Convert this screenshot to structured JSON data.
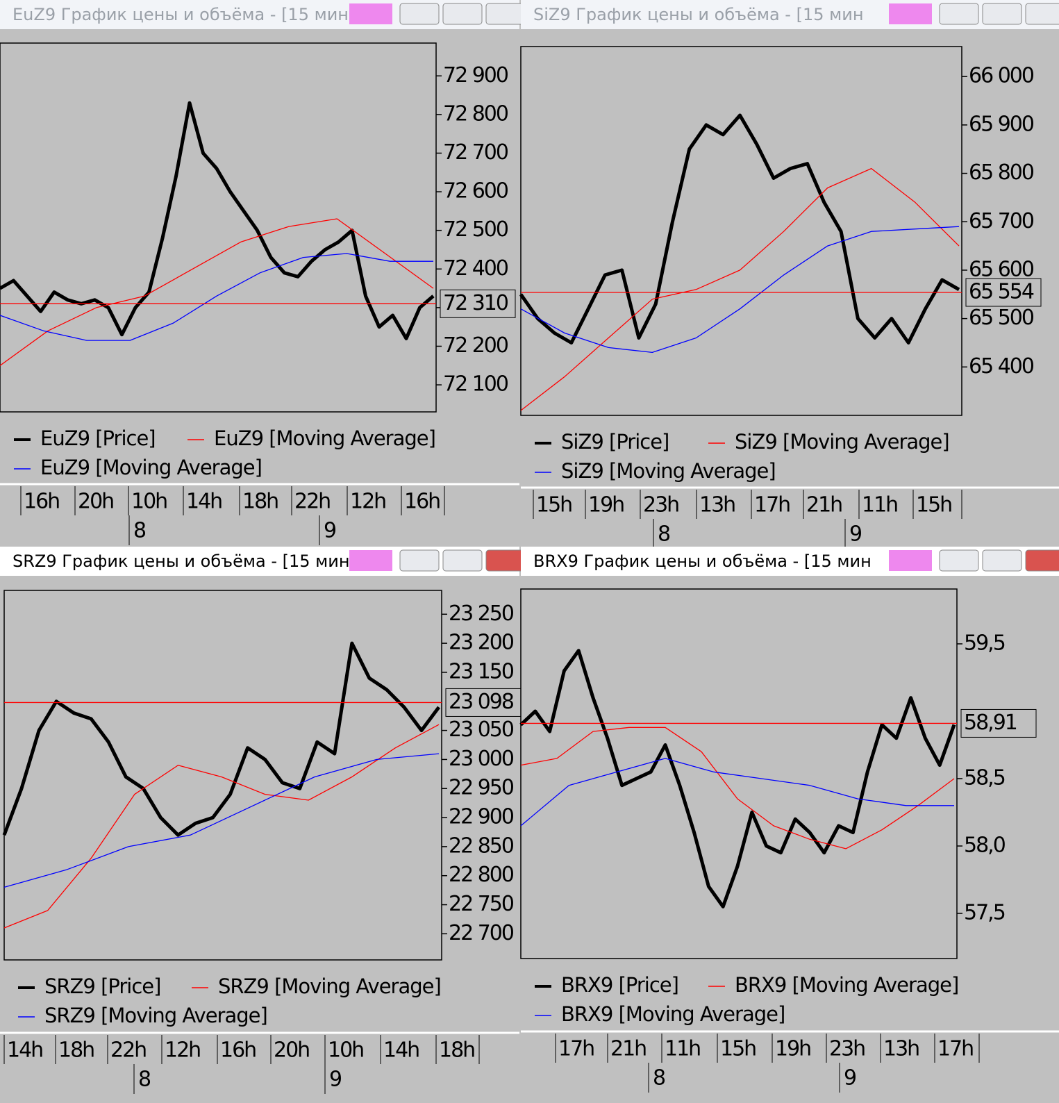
{
  "chart_data": [
    {
      "type": "line",
      "window_title": "EuZ9 График цены и объёма - [15 мин",
      "ylim": [
        72030,
        72985
      ],
      "yticks": [
        {
          "value": 72100,
          "label": "72 100"
        },
        {
          "value": 72200,
          "label": "72 200"
        },
        {
          "value": 72300,
          "label": "72 300"
        },
        {
          "value": 72400,
          "label": "72 400"
        },
        {
          "value": 72500,
          "label": "72 500"
        },
        {
          "value": 72600,
          "label": "72 600"
        },
        {
          "value": 72700,
          "label": "72 700"
        },
        {
          "value": 72800,
          "label": "72 800"
        },
        {
          "value": 72900,
          "label": "72 900"
        }
      ],
      "last": {
        "value": 72310,
        "label": "72 310"
      },
      "series": [
        {
          "name": "EuZ9 [Price]",
          "color": "#000000",
          "values": [
            72350,
            72370,
            72330,
            72290,
            72340,
            72320,
            72310,
            72320,
            72300,
            72230,
            72300,
            72340,
            72480,
            72640,
            72830,
            72700,
            72660,
            72600,
            72550,
            72500,
            72430,
            72390,
            72380,
            72420,
            72450,
            72470,
            72500,
            72330,
            72250,
            72280,
            72220,
            72300,
            72330
          ]
        },
        {
          "name": "EuZ9 [Moving Average]",
          "color": "#ff0000",
          "values": [
            72150,
            72240,
            72300,
            72330,
            72400,
            72470,
            72510,
            72530,
            72440,
            72350
          ]
        },
        {
          "name": "EuZ9 [Moving Average]",
          "color": "#0000ff",
          "values": [
            72280,
            72240,
            72215,
            72215,
            72260,
            72330,
            72390,
            72430,
            72440,
            72420,
            72420
          ]
        }
      ],
      "time_labels": [
        "16h",
        "20h",
        "10h",
        "14h",
        "18h",
        "22h",
        "12h",
        "16h"
      ],
      "days": [
        "8",
        "9"
      ]
    },
    {
      "type": "line",
      "window_title": "SiZ9 График цены и объёма - [15 мин",
      "ylim": [
        65300,
        66062
      ],
      "yticks": [
        {
          "value": 65400,
          "label": "65 400"
        },
        {
          "value": 65500,
          "label": "65 500"
        },
        {
          "value": 65600,
          "label": "65 600"
        },
        {
          "value": 65700,
          "label": "65 700"
        },
        {
          "value": 65800,
          "label": "65 800"
        },
        {
          "value": 65900,
          "label": "65 900"
        },
        {
          "value": 66000,
          "label": "66 000"
        }
      ],
      "last": {
        "value": 65554,
        "label": "65 554"
      },
      "series": [
        {
          "name": "SiZ9 [Price]",
          "color": "#000000",
          "values": [
            65550,
            65500,
            65470,
            65450,
            65520,
            65590,
            65600,
            65460,
            65530,
            65700,
            65850,
            65900,
            65880,
            65920,
            65860,
            65790,
            65810,
            65820,
            65740,
            65680,
            65500,
            65460,
            65500,
            65450,
            65520,
            65580,
            65560
          ]
        },
        {
          "name": "SiZ9 [Moving Average]",
          "color": "#ff0000",
          "values": [
            65310,
            65380,
            65460,
            65540,
            65560,
            65600,
            65680,
            65770,
            65810,
            65740,
            65650
          ]
        },
        {
          "name": "SiZ9 [Moving Average]",
          "color": "#0000ff",
          "values": [
            65520,
            65470,
            65440,
            65430,
            65460,
            65520,
            65590,
            65650,
            65680,
            65685,
            65690
          ]
        }
      ],
      "time_labels": [
        "15h",
        "19h",
        "23h",
        "13h",
        "17h",
        "21h",
        "11h",
        "15h"
      ],
      "days": [
        "8",
        "9"
      ]
    },
    {
      "type": "line",
      "window_title": "SRZ9 График цены и объёма - [15 мин",
      "ylim": [
        22655,
        23291
      ],
      "yticks": [
        {
          "value": 22700,
          "label": "22 700"
        },
        {
          "value": 22750,
          "label": "22 750"
        },
        {
          "value": 22800,
          "label": "22 800"
        },
        {
          "value": 22850,
          "label": "22 850"
        },
        {
          "value": 22900,
          "label": "22 900"
        },
        {
          "value": 22950,
          "label": "22 950"
        },
        {
          "value": 23000,
          "label": "23 000"
        },
        {
          "value": 23050,
          "label": "23 050"
        },
        {
          "value": 23150,
          "label": "23 150"
        },
        {
          "value": 23200,
          "label": "23 200"
        },
        {
          "value": 23250,
          "label": "23 250"
        }
      ],
      "last": {
        "value": 23098,
        "label": "23 098"
      },
      "series": [
        {
          "name": "SRZ9 [Price]",
          "color": "#000000",
          "values": [
            22870,
            22950,
            23050,
            23100,
            23080,
            23070,
            23030,
            22970,
            22950,
            22900,
            22870,
            22890,
            22900,
            22940,
            23020,
            23000,
            22960,
            22950,
            23030,
            23010,
            23200,
            23140,
            23120,
            23090,
            23050,
            23090
          ]
        },
        {
          "name": "SRZ9 [Moving Average]",
          "color": "#ff0000",
          "values": [
            22710,
            22740,
            22830,
            22940,
            22990,
            22970,
            22940,
            22930,
            22970,
            23020,
            23060
          ]
        },
        {
          "name": "SRZ9 [Moving Average]",
          "color": "#0000ff",
          "values": [
            22780,
            22810,
            22850,
            22870,
            22920,
            22970,
            23000,
            23010
          ]
        }
      ],
      "time_labels": [
        "14h",
        "18h",
        "22h",
        "12h",
        "16h",
        "20h",
        "10h",
        "14h",
        "18h"
      ],
      "days": [
        "8",
        "9"
      ]
    },
    {
      "type": "line",
      "window_title": "BRX9 График цены и объёма - [15 мин",
      "ylim": [
        57.165,
        59.907
      ],
      "yticks": [
        {
          "value": 57.5,
          "label": "57,5"
        },
        {
          "value": 58,
          "label": "58,0"
        },
        {
          "value": 58.5,
          "label": "58,5"
        },
        {
          "value": 59.5,
          "label": "59,5"
        }
      ],
      "last": {
        "value": 58.91,
        "label": "58,91"
      },
      "series": [
        {
          "name": "BRX9 [Price]",
          "color": "#000000",
          "values": [
            58.9,
            59.0,
            58.85,
            59.3,
            59.45,
            59.1,
            58.8,
            58.45,
            58.5,
            58.55,
            58.75,
            58.45,
            58.1,
            57.7,
            57.55,
            57.85,
            58.25,
            58.0,
            57.95,
            58.2,
            58.1,
            57.95,
            58.15,
            58.1,
            58.55,
            58.9,
            58.8,
            59.1,
            58.8,
            58.6,
            58.9
          ]
        },
        {
          "name": "BRX9 [Moving Average]",
          "color": "#ff0000",
          "values": [
            58.6,
            58.65,
            58.85,
            58.88,
            58.88,
            58.7,
            58.35,
            58.15,
            58.05,
            57.98,
            58.12,
            58.3,
            58.5
          ]
        },
        {
          "name": "BRX9 [Moving Average]",
          "color": "#0000ff",
          "values": [
            58.15,
            58.45,
            58.55,
            58.65,
            58.55,
            58.5,
            58.45,
            58.35,
            58.3,
            58.3
          ]
        }
      ],
      "time_labels": [
        "17h",
        "21h",
        "11h",
        "15h",
        "19h",
        "23h",
        "13h",
        "17h"
      ],
      "days": [
        "8",
        "9"
      ]
    }
  ]
}
